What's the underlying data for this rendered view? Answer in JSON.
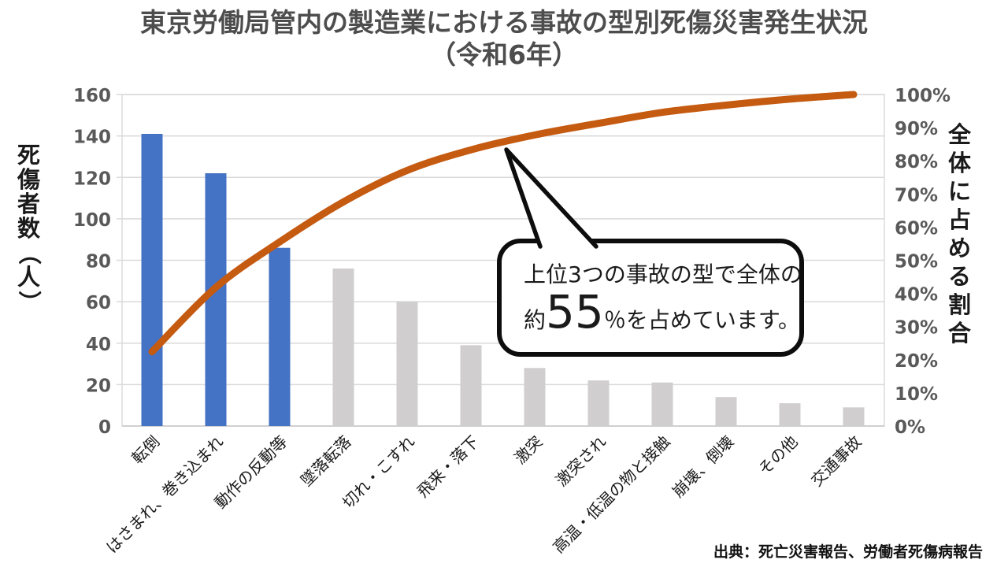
{
  "title": {
    "line1": "東京労働局管内の製造業における事故の型別死傷災害発生状況",
    "line2": "（令和6年）"
  },
  "source": "出典：死亡災害報告、労働者死傷病報告",
  "callout": {
    "line1": "上位3つの事故の型で全体の",
    "prefix": "約",
    "big_number": "55",
    "suffix": "％を占めています。"
  },
  "colors": {
    "bar_highlight": "#4472C4",
    "bar_normal": "#D0CECE",
    "line": "#C55A11",
    "gridline": "#D9D9D9",
    "plot_border": "#D9D9D9",
    "axis_bottom": "#C6C6C6",
    "tick_label": "#595959",
    "category_label": "#1a1a1a",
    "title": "#4d4d4d",
    "callout_border": "#0d0d0d"
  },
  "chart_data": {
    "type": "bar",
    "subtype": "pareto (bar + cumulative line)",
    "title": "東京労働局管内の製造業における事故の型別死傷災害発生状況（令和6年）",
    "categories": [
      "転倒",
      "はさまれ、巻き込まれ",
      "動作の反動等",
      "墜落転落",
      "切れ・こすれ",
      "飛来・落下",
      "激突",
      "激突され",
      "高温・低温の物と接触",
      "崩壊、倒壊",
      "その他",
      "交通事故"
    ],
    "series": [
      {
        "name": "死傷者数",
        "type": "bar",
        "values": [
          141,
          122,
          86,
          76,
          60,
          39,
          28,
          22,
          21,
          14,
          11,
          9
        ],
        "highlight_first_n": 3
      },
      {
        "name": "全体に占める割合（累積）",
        "type": "line",
        "axis": "right",
        "values_percent": [
          22.4,
          41.8,
          55.5,
          67.6,
          77.1,
          83.3,
          87.8,
          91.3,
          94.6,
          96.8,
          98.6,
          100.0
        ]
      }
    ],
    "left_axis": {
      "label": "死傷者数（人）",
      "ticks": [
        0,
        20,
        40,
        60,
        80,
        100,
        120,
        140,
        160
      ],
      "ylim": [
        0,
        160
      ]
    },
    "right_axis": {
      "label": "全体に占める割合",
      "ticks": [
        "0%",
        "10%",
        "20%",
        "30%",
        "40%",
        "50%",
        "60%",
        "70%",
        "80%",
        "90%",
        "100%"
      ],
      "ylim_percent": [
        0,
        100
      ]
    },
    "grid": "horizontal",
    "legend": "none",
    "annotation": "上位3つの事故の型で全体の約55％を占めています。"
  }
}
